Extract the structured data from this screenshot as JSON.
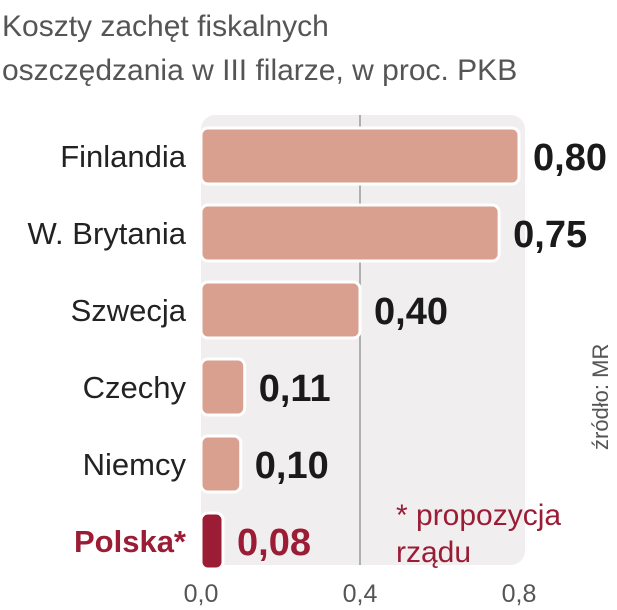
{
  "chart_data": {
    "type": "bar",
    "orientation": "horizontal",
    "title_lines": [
      "Koszty zachęt fiskalnych",
      "oszczędzania w III filarze, w proc. PKB"
    ],
    "categories": [
      "Finlandia",
      "W. Brytania",
      "Szwecja",
      "Czechy",
      "Niemcy",
      "Polska*"
    ],
    "values": [
      0.8,
      0.75,
      0.4,
      0.11,
      0.1,
      0.08
    ],
    "value_labels": [
      "0,80",
      "0,75",
      "0,40",
      "0,11",
      "0,10",
      "0,08"
    ],
    "highlight_index": 5,
    "xlim": [
      0,
      0.8
    ],
    "xticks": [
      0,
      0.4,
      0.8
    ],
    "xtick_labels": [
      "0,0",
      "0,4",
      "0,8"
    ],
    "grid": true,
    "source": "źródło: MR",
    "note_lines": [
      "* propozycja",
      "rządu"
    ],
    "colors": {
      "bar": "#d9a08f",
      "bar_highlight": "#9b1c35",
      "bar_outline": "#ffffff",
      "plot_bg": "#f0eeee",
      "highlight_text": "#9b1c35",
      "gridline": "#9a9a9a"
    }
  }
}
